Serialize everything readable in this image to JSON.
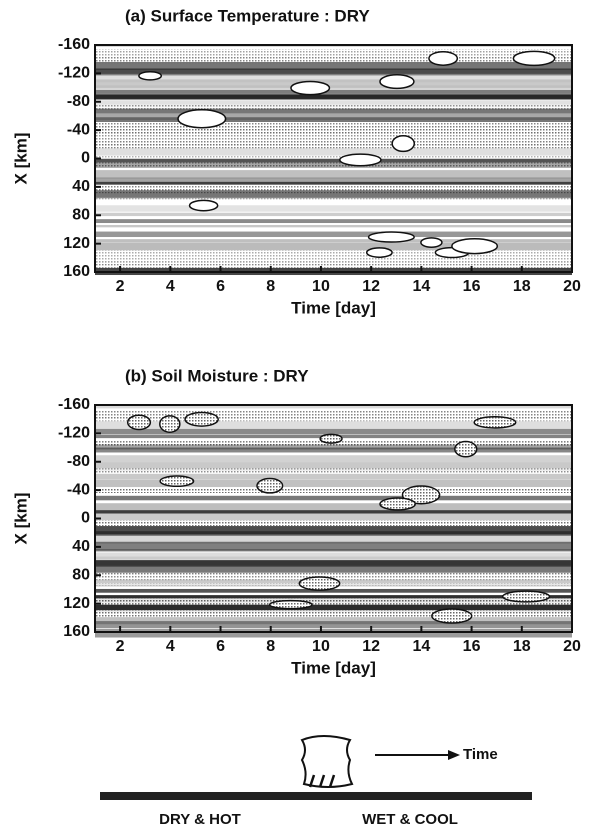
{
  "panels": [
    {
      "title": "(a) Surface Temperature : DRY",
      "x_label": "Time [day]",
      "y_label": "X [km]",
      "xticks": [
        2,
        4,
        6,
        8,
        10,
        12,
        14,
        16,
        18,
        20
      ],
      "yticks": [
        -160,
        -120,
        -80,
        -40,
        0,
        40,
        80,
        120,
        160
      ]
    },
    {
      "title": "(b) Soil Moisture : DRY",
      "x_label": "Time [day]",
      "y_label": "X [km]",
      "xticks": [
        2,
        4,
        6,
        8,
        10,
        12,
        14,
        16,
        18,
        20
      ],
      "yticks": [
        -160,
        -120,
        -80,
        -40,
        0,
        40,
        80,
        120,
        160
      ]
    }
  ],
  "schematic": {
    "time_label": "Time",
    "left_label": "DRY & HOT",
    "right_label": "WET & COOL"
  }
}
